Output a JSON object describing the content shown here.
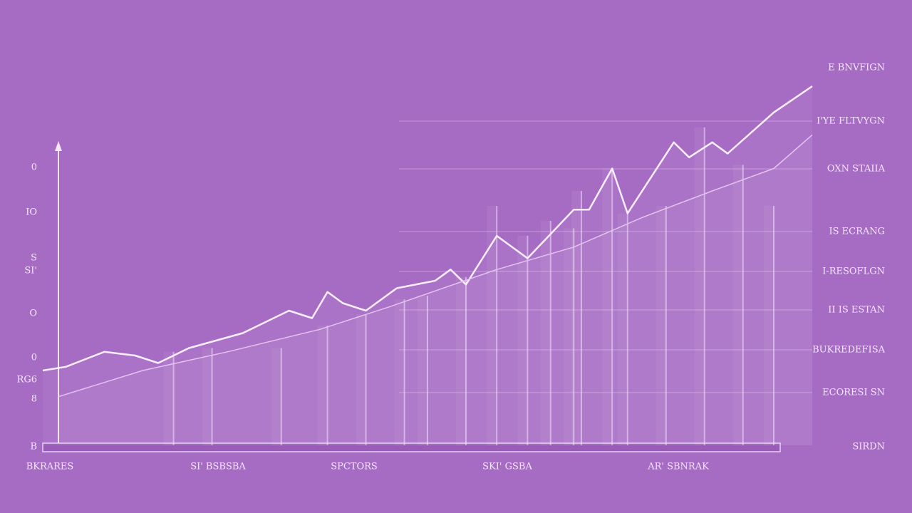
{
  "chart_data": {
    "type": "line",
    "xlim": [
      0,
      100
    ],
    "ylim": [
      0,
      100
    ],
    "series": [
      {
        "color": "#fbeeff",
        "x": [
          0,
          3,
          8,
          12,
          15,
          19,
          26,
          32,
          35,
          37,
          39,
          42,
          46,
          51,
          53,
          55,
          59,
          63,
          69,
          71,
          74,
          76,
          82,
          84,
          87,
          89,
          95,
          100
        ],
        "values": [
          20,
          21,
          25,
          24,
          22,
          26,
          30,
          36,
          34,
          41,
          38,
          36,
          42,
          44,
          47,
          43,
          56,
          50,
          63,
          63,
          74,
          62,
          81,
          77,
          81,
          78,
          89,
          96
        ]
      },
      {
        "color": "#e3c4f0",
        "x": [
          2,
          13,
          24,
          36,
          45,
          59,
          69,
          78,
          87,
          95,
          100
        ],
        "values": [
          13,
          20,
          25,
          31,
          37,
          47,
          53,
          61,
          68,
          74,
          83
        ]
      }
    ],
    "columns": {
      "type": "bar",
      "color": "#f3dcff",
      "x": [
        17,
        22,
        31,
        37,
        42,
        47,
        50,
        55,
        59,
        63,
        66,
        69,
        70,
        74,
        76,
        81,
        86,
        91,
        95
      ],
      "values": [
        25,
        26,
        26,
        32,
        35,
        39,
        40,
        45,
        64,
        56,
        60,
        58,
        68,
        74,
        62,
        64,
        85,
        75,
        64
      ]
    },
    "left_labels": [
      "0",
      "IO",
      "S",
      "SI'",
      "O",
      "0",
      "RG6",
      "8",
      "B"
    ],
    "right_labels": [
      "E BNVFIGN",
      "I'YE FLTVYGN",
      "OXN STAIIA",
      "IS ECRANG",
      "I-RESOFLGN",
      "II IS ESTAN",
      "BUKREDEFISA",
      "ECORESI SN",
      "SIRDN"
    ],
    "x_labels": [
      "BKRARES",
      "SI' BSBSBA",
      "SPCTORS",
      "SKI' GSBA",
      "AR' SBNRAK"
    ]
  }
}
